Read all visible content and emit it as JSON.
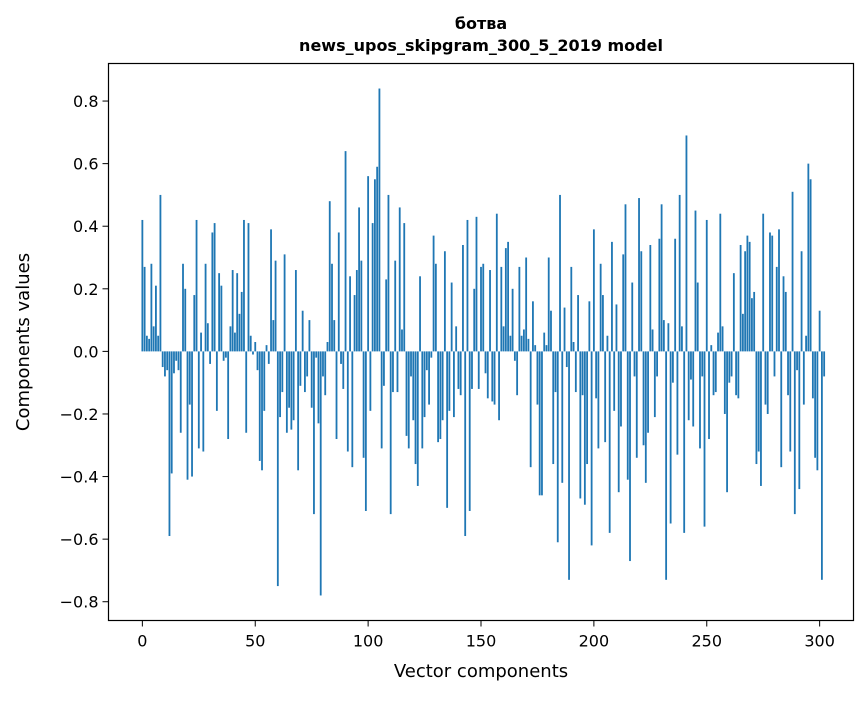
{
  "chart_data": {
    "type": "bar",
    "title": "ботва",
    "subtitle": "news_upos_skipgram_300_5_2019 model",
    "xlabel": "Vector components",
    "ylabel": "Components values",
    "xlim": [
      -15,
      315
    ],
    "ylim": [
      -0.86,
      0.92
    ],
    "xticks": [
      0,
      50,
      100,
      150,
      200,
      250,
      300
    ],
    "xtick_labels": [
      "0",
      "50",
      "100",
      "150",
      "200",
      "250",
      "300"
    ],
    "yticks": [
      0.8,
      0.6,
      0.4,
      0.2,
      0.0,
      -0.2,
      -0.4,
      -0.6,
      -0.8
    ],
    "ytick_labels": [
      "0.8",
      "0.6",
      "0.4",
      "0.2",
      "0.0",
      "−0.2",
      "−0.4",
      "−0.6",
      "−0.8"
    ],
    "bar_color": "#1f77b4",
    "values": [
      0.42,
      0.27,
      0.05,
      0.04,
      0.28,
      0.08,
      0.21,
      0.05,
      0.5,
      -0.05,
      -0.08,
      -0.06,
      -0.59,
      -0.39,
      -0.07,
      -0.03,
      -0.06,
      -0.26,
      0.28,
      0.2,
      -0.41,
      -0.17,
      -0.4,
      0.18,
      0.42,
      -0.31,
      0.06,
      -0.32,
      0.28,
      0.09,
      -0.04,
      0.38,
      0.41,
      -0.19,
      0.25,
      0.21,
      -0.03,
      -0.02,
      -0.28,
      0.08,
      0.26,
      0.06,
      0.25,
      0.12,
      0.19,
      0.42,
      -0.26,
      0.41,
      0.05,
      -0.01,
      0.03,
      -0.06,
      -0.35,
      -0.38,
      -0.19,
      0.02,
      -0.04,
      0.39,
      0.1,
      0.29,
      -0.75,
      -0.21,
      -0.13,
      0.31,
      -0.26,
      -0.18,
      -0.25,
      -0.22,
      0.26,
      -0.38,
      -0.11,
      0.13,
      -0.13,
      -0.08,
      0.1,
      -0.18,
      -0.52,
      -0.02,
      -0.23,
      -0.78,
      -0.08,
      -0.14,
      0.03,
      0.48,
      0.28,
      0.1,
      -0.28,
      0.38,
      -0.04,
      -0.12,
      0.64,
      -0.32,
      0.24,
      -0.37,
      0.18,
      0.26,
      0.46,
      0.29,
      -0.34,
      -0.51,
      0.56,
      -0.19,
      0.41,
      0.55,
      0.59,
      0.84,
      -0.31,
      -0.11,
      0.23,
      0.5,
      -0.52,
      -0.13,
      0.29,
      -0.13,
      0.46,
      0.07,
      0.41,
      -0.27,
      -0.31,
      -0.08,
      -0.22,
      -0.36,
      -0.43,
      0.24,
      -0.31,
      -0.21,
      -0.06,
      -0.17,
      -0.02,
      0.37,
      0.28,
      -0.29,
      -0.28,
      -0.22,
      0.32,
      -0.5,
      -0.19,
      0.22,
      -0.21,
      0.08,
      -0.12,
      -0.14,
      0.34,
      -0.59,
      0.42,
      -0.51,
      -0.12,
      0.2,
      0.43,
      -0.12,
      0.27,
      0.28,
      -0.07,
      -0.15,
      0.26,
      -0.16,
      -0.17,
      0.44,
      -0.22,
      0.27,
      0.08,
      0.33,
      0.35,
      0.05,
      0.2,
      -0.03,
      -0.14,
      0.27,
      0.05,
      0.07,
      0.3,
      0.04,
      -0.37,
      0.16,
      0.02,
      -0.17,
      -0.46,
      -0.46,
      0.06,
      0.02,
      0.3,
      0.13,
      -0.36,
      -0.13,
      -0.61,
      0.5,
      -0.42,
      0.14,
      -0.05,
      -0.73,
      0.27,
      0.03,
      -0.13,
      0.18,
      -0.47,
      -0.14,
      -0.49,
      -0.36,
      0.16,
      -0.62,
      0.39,
      -0.15,
      -0.31,
      0.28,
      0.18,
      -0.29,
      0.05,
      -0.58,
      0.35,
      -0.19,
      0.15,
      -0.45,
      -0.24,
      0.31,
      0.47,
      -0.41,
      -0.67,
      0.22,
      -0.08,
      -0.34,
      0.49,
      0.32,
      -0.3,
      -0.42,
      -0.26,
      0.34,
      0.07,
      -0.21,
      -0.08,
      0.36,
      0.47,
      0.1,
      -0.73,
      0.09,
      -0.55,
      -0.1,
      0.36,
      -0.33,
      0.5,
      0.08,
      -0.58,
      0.69,
      -0.22,
      -0.09,
      -0.24,
      0.45,
      0.22,
      -0.31,
      -0.08,
      -0.56,
      0.42,
      -0.28,
      0.02,
      -0.14,
      -0.13,
      0.06,
      0.44,
      0.08,
      -0.2,
      -0.45,
      -0.1,
      -0.08,
      0.25,
      -0.14,
      -0.15,
      0.34,
      0.12,
      0.32,
      0.37,
      0.35,
      0.17,
      0.19,
      -0.36,
      -0.32,
      -0.43,
      0.44,
      -0.17,
      -0.2,
      0.38,
      0.37,
      -0.08,
      0.27,
      0.39,
      -0.37,
      0.24,
      0.19,
      -0.14,
      -0.32,
      0.51,
      -0.52,
      -0.06,
      -0.44,
      0.32,
      -0.17,
      0.05,
      0.6,
      0.55,
      -0.15,
      -0.34,
      -0.38,
      0.13,
      -0.73,
      -0.08
    ]
  }
}
